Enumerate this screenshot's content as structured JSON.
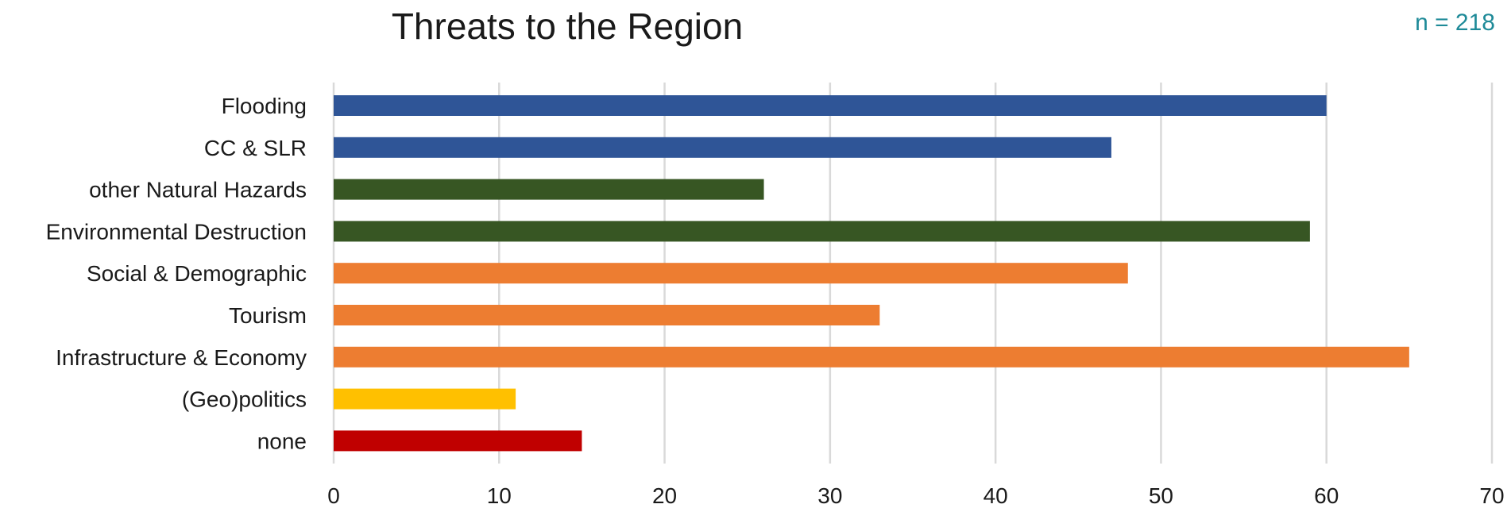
{
  "chart_data": {
    "type": "bar",
    "orientation": "horizontal",
    "title": "Threats to the Region",
    "annotation": "n = 218",
    "xlabel": "",
    "ylabel": "",
    "xlim": [
      0,
      70
    ],
    "x_ticks": [
      0,
      10,
      20,
      30,
      40,
      50,
      60,
      70
    ],
    "grid": "vertical",
    "categories": [
      "Flooding",
      "CC & SLR",
      "other Natural Hazards",
      "Environmental Destruction",
      "Social & Demographic",
      "Tourism",
      "Infrastructure & Economy",
      "(Geo)politics",
      "none"
    ],
    "values": [
      60,
      47,
      26,
      59,
      48,
      33,
      65,
      11,
      15
    ],
    "colors": [
      "#2f5597",
      "#2f5597",
      "#375623",
      "#375623",
      "#ed7d31",
      "#ed7d31",
      "#ed7d31",
      "#ffc000",
      "#c00000"
    ],
    "gridline_color": "#d9d9d9",
    "annotation_color": "#1e8a98"
  }
}
